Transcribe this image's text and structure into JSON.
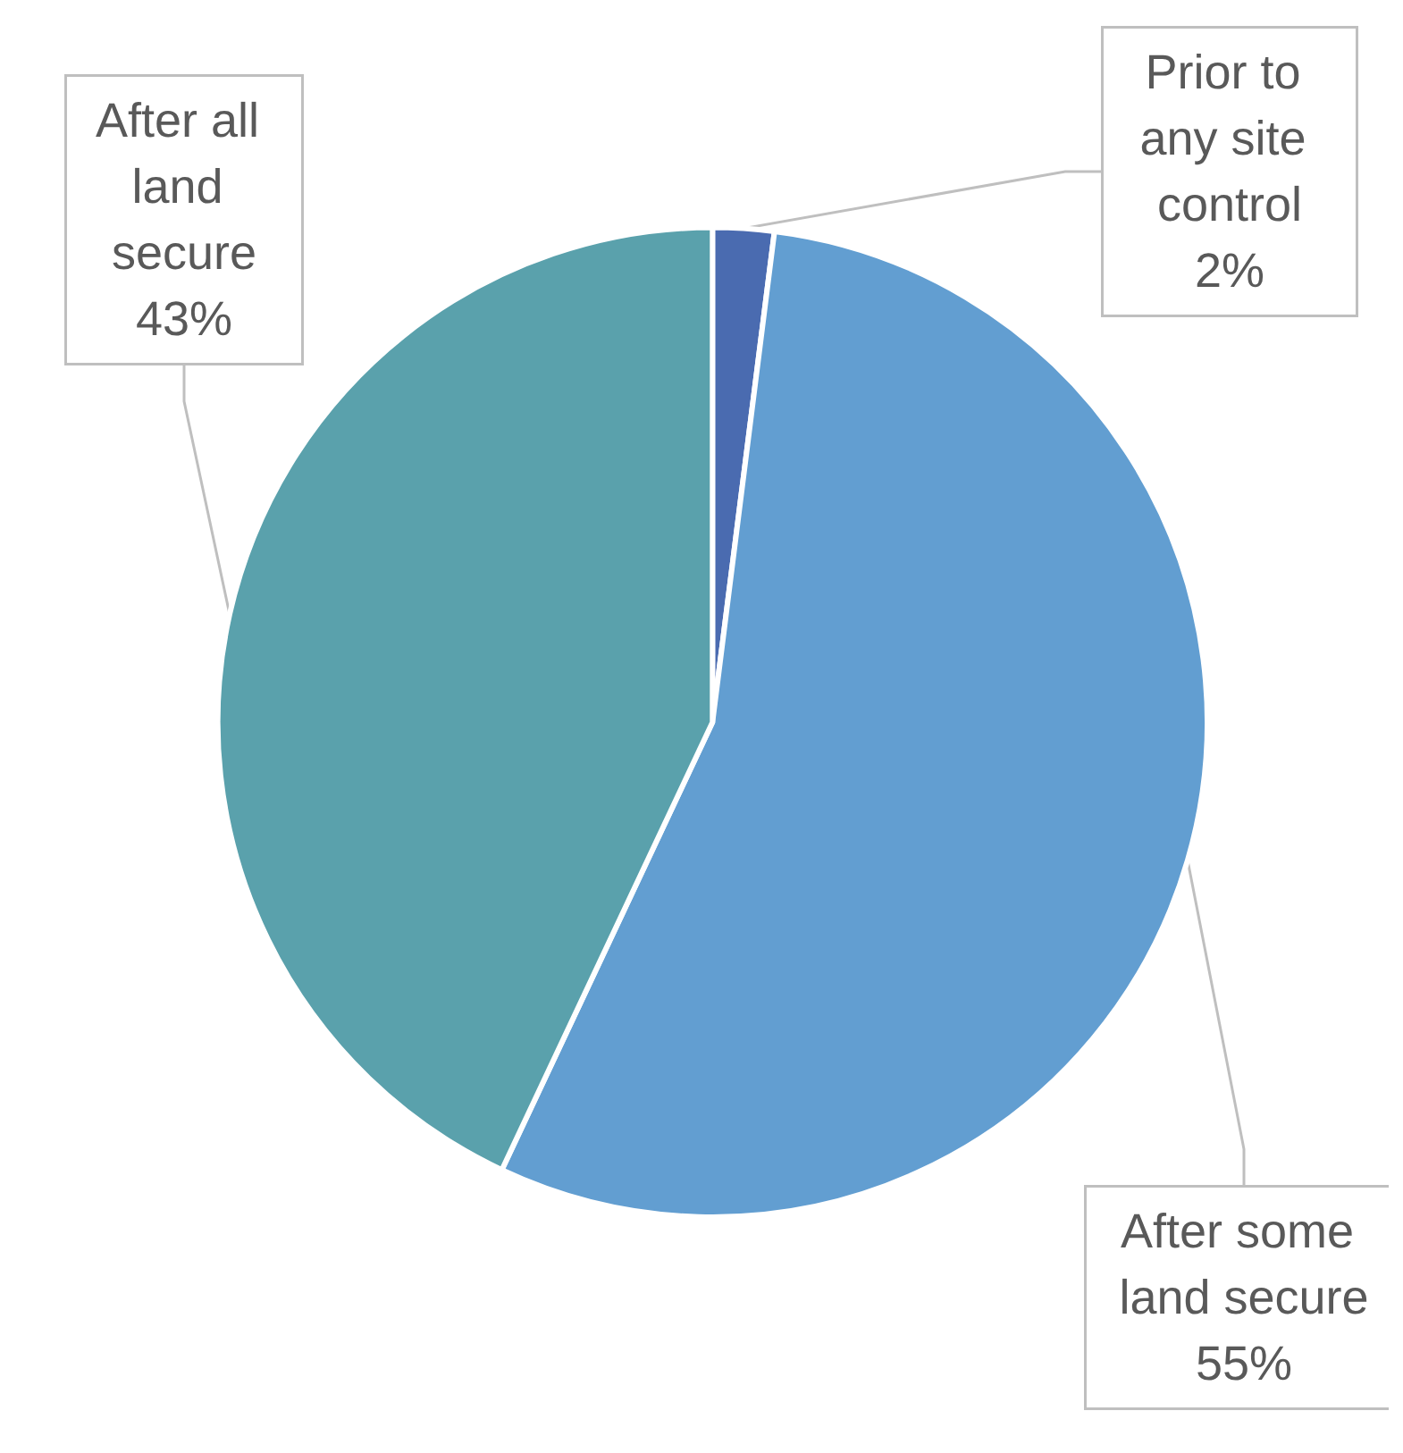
{
  "chart_data": {
    "type": "pie",
    "categories": [
      "Prior to any site control",
      "After some land secure",
      "After all land secure"
    ],
    "values": [
      2,
      55,
      43
    ],
    "colors": [
      "#4a6bb0",
      "#629ed1",
      "#5aa1ac"
    ],
    "value_labels": [
      "2%",
      "55%",
      "43%"
    ],
    "legend": false
  }
}
